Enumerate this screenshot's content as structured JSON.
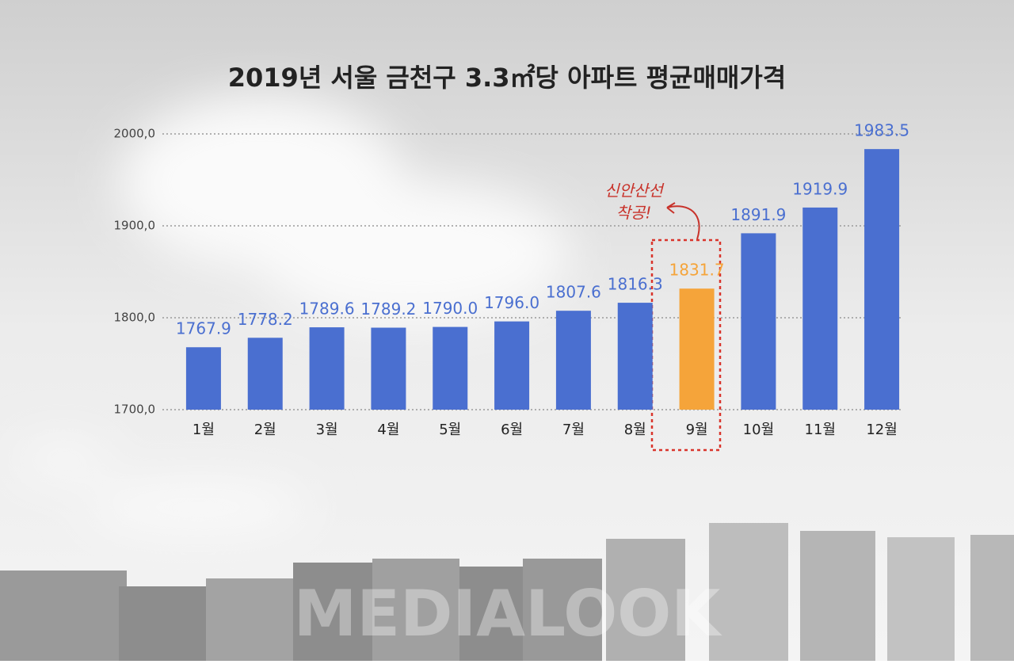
{
  "chart_data": {
    "type": "bar",
    "title": "2019년 서울 금천구 3.3㎡당 아파트 평균매매가격",
    "categories": [
      "1월",
      "2월",
      "3월",
      "4월",
      "5월",
      "6월",
      "7월",
      "8월",
      "9월",
      "10월",
      "11월",
      "12월"
    ],
    "values": [
      1767.9,
      1778.2,
      1789.6,
      1789.2,
      1790.0,
      1796.0,
      1807.6,
      1816.3,
      1831.7,
      1891.9,
      1919.9,
      1983.5
    ],
    "value_labels": [
      "1767.9",
      "1778.2",
      "1789.6",
      "1789.2",
      "1790.0",
      "1796.0",
      "1807.6",
      "1816.3",
      "1831.7",
      "1891.9",
      "1919.9",
      "1983.5"
    ],
    "colors": [
      "#4a6fd0",
      "#4a6fd0",
      "#4a6fd0",
      "#4a6fd0",
      "#4a6fd0",
      "#4a6fd0",
      "#4a6fd0",
      "#4a6fd0",
      "#f5a43a",
      "#4a6fd0",
      "#4a6fd0",
      "#4a6fd0"
    ],
    "ylim": [
      1700,
      2000
    ],
    "yticks": [
      {
        "value": 1700,
        "label": "1700,0"
      },
      {
        "value": 1800,
        "label": "1800,0"
      },
      {
        "value": 1900,
        "label": "1900,0"
      },
      {
        "value": 2000,
        "label": "2000,0"
      }
    ],
    "grid": true,
    "annotation": [
      "신안산선",
      "착공!"
    ],
    "watermark": "MEDIALOOK"
  }
}
